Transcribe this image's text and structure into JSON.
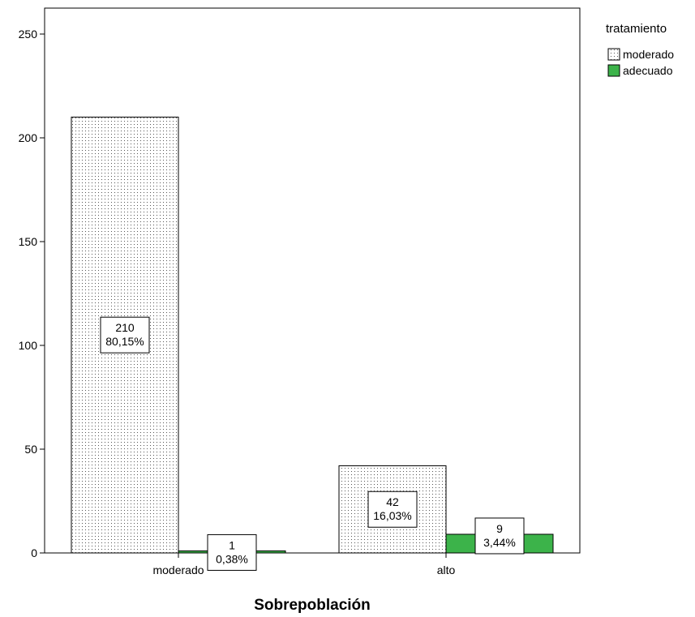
{
  "chart_data": {
    "type": "bar",
    "title": "",
    "xlabel": "Sobrepoblación",
    "ylabel": "",
    "ylim": [
      0,
      262.5
    ],
    "yticks": [
      0,
      50,
      100,
      150,
      200,
      250
    ],
    "grid": false,
    "legend_title": "tratamiento",
    "legend_position": "top-right, outside plot",
    "categories": [
      "moderado",
      "alto"
    ],
    "series": [
      {
        "name": "moderado",
        "pattern": "dotted",
        "color": "#ffffff",
        "values": [
          210,
          42
        ],
        "labels": [
          {
            "count": "210",
            "percent": "80,15%"
          },
          {
            "count": "42",
            "percent": "16,03%"
          }
        ]
      },
      {
        "name": "adecuado",
        "pattern": "solid",
        "color": "#3cb34a",
        "values": [
          1,
          9
        ],
        "labels": [
          {
            "count": "1",
            "percent": "0,38%"
          },
          {
            "count": "9",
            "percent": "3,44%"
          }
        ]
      }
    ]
  }
}
